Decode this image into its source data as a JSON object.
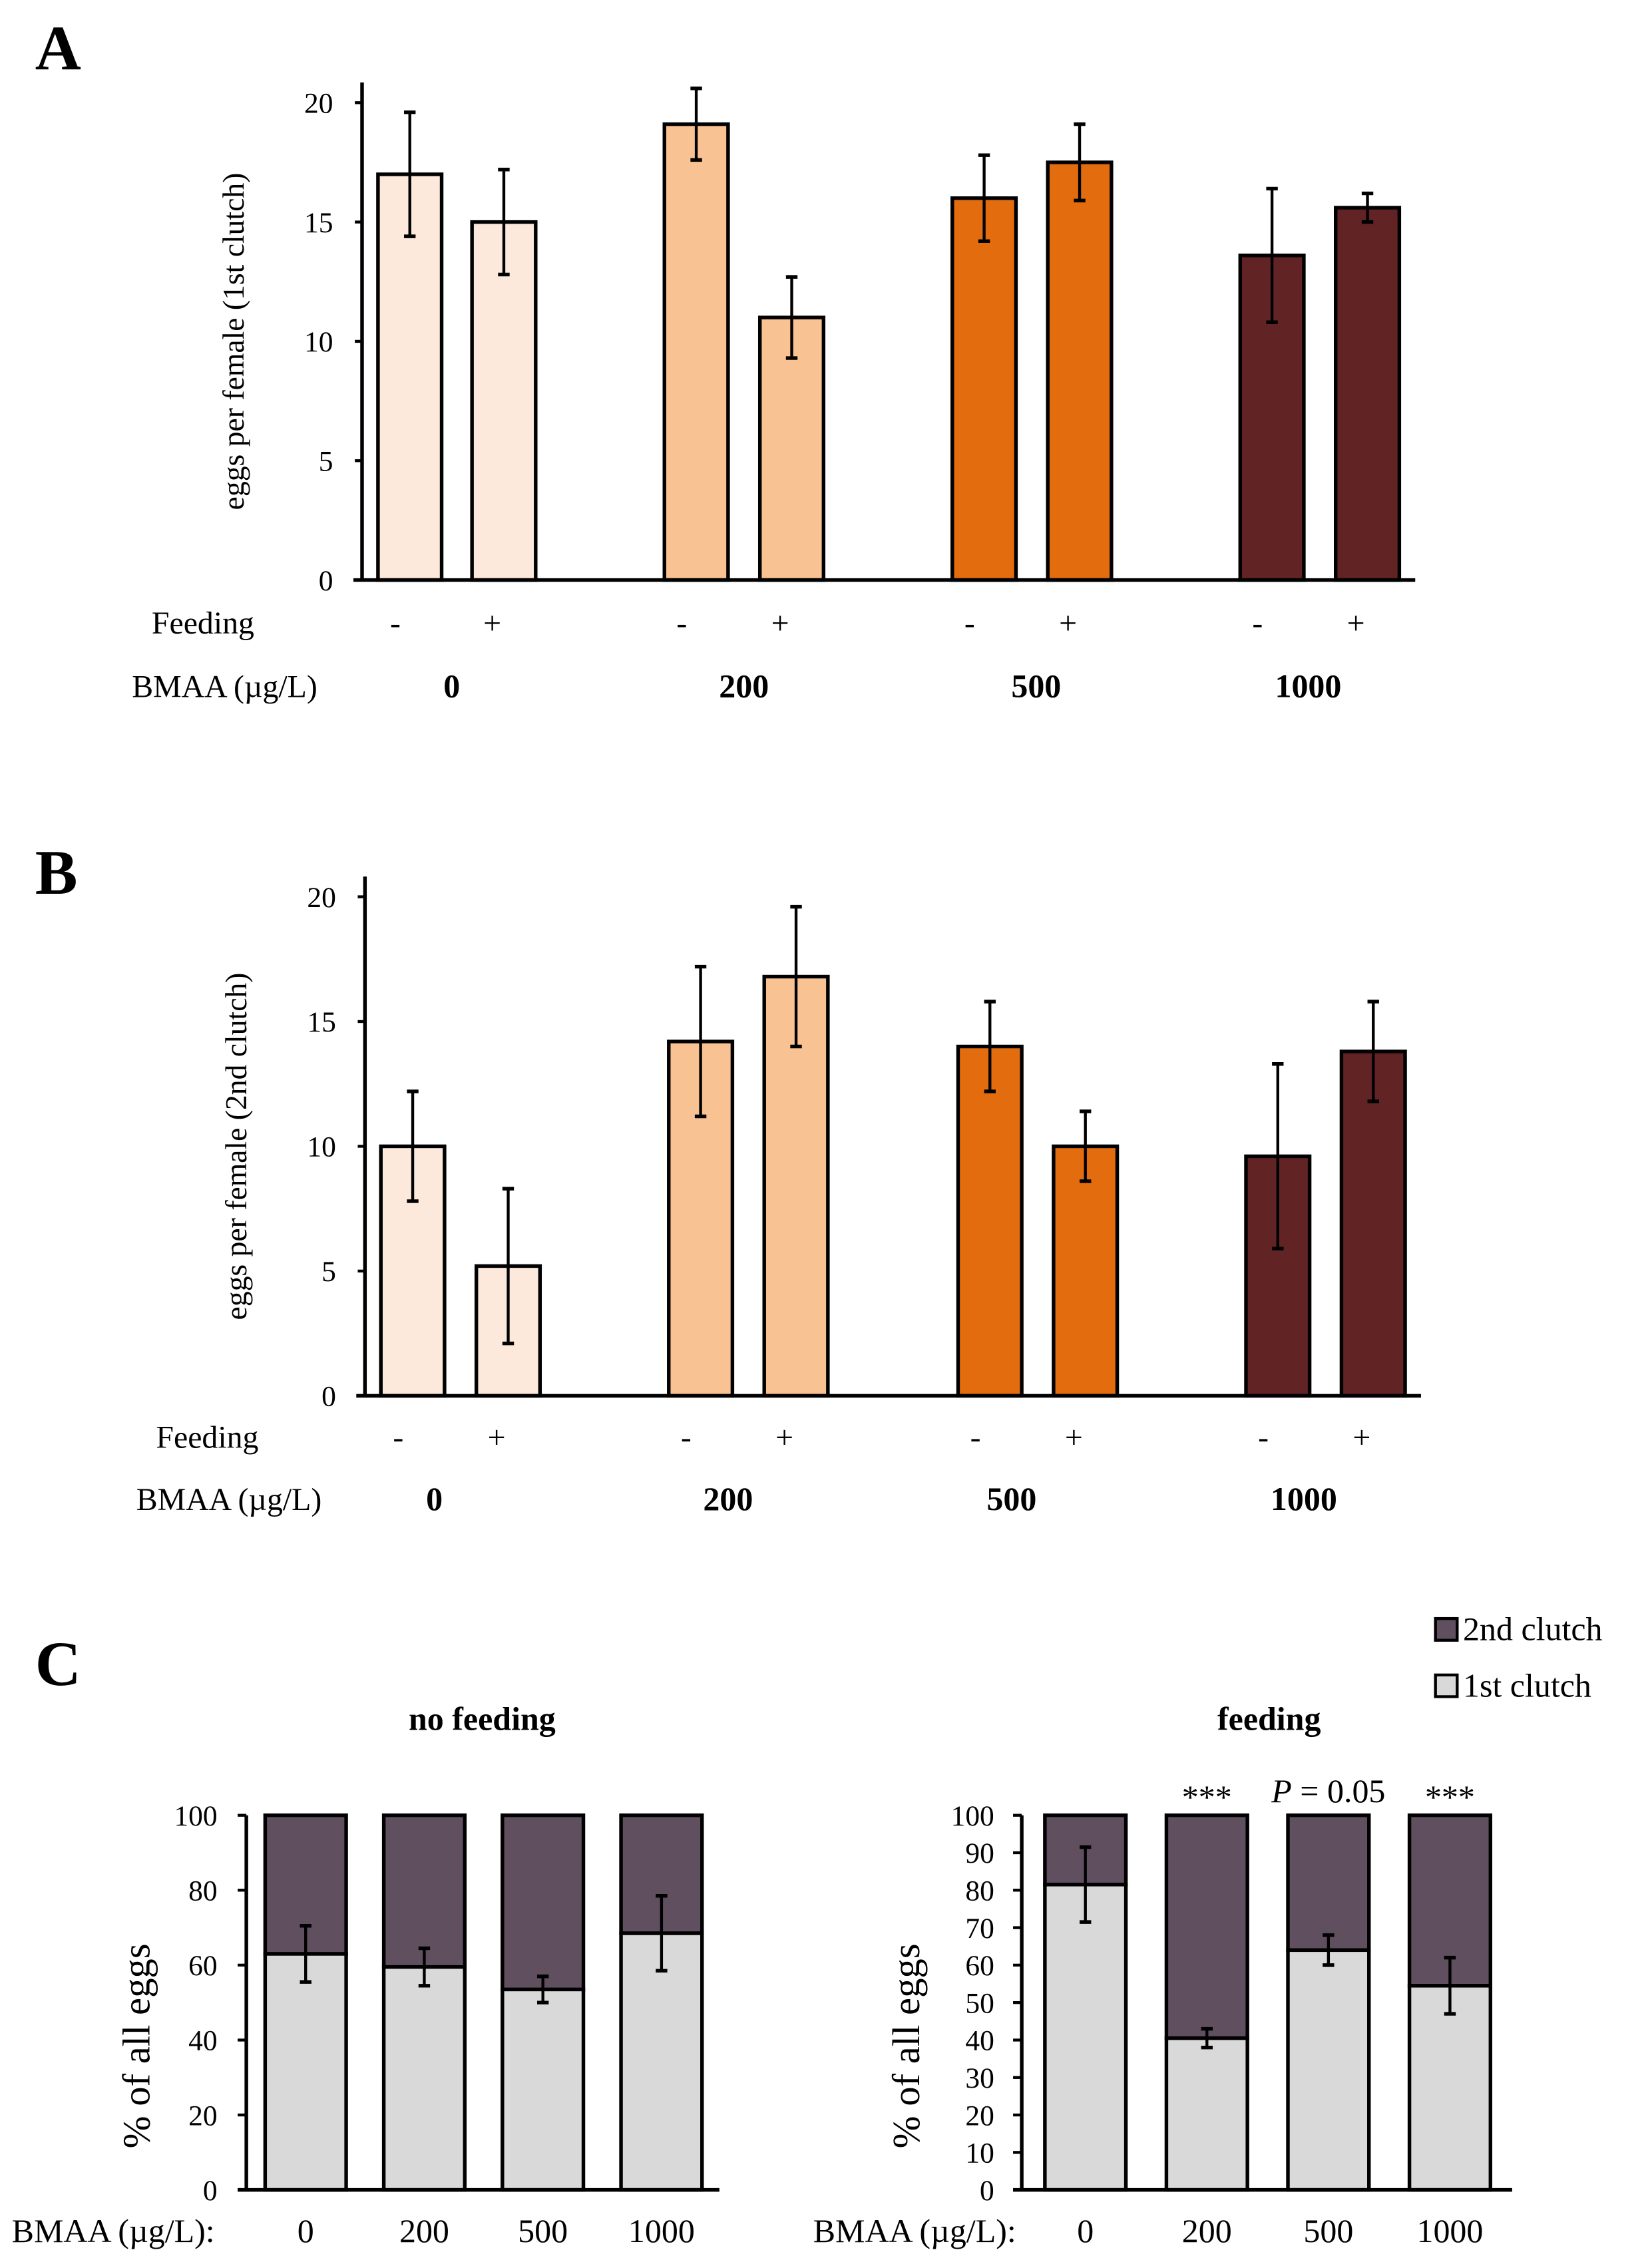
{
  "colors": {
    "c0": "#fce9db",
    "c200": "#f8c293",
    "c500": "#e36c0e",
    "c1000": "#622325",
    "first": "#d9d9d9",
    "second": "#604f5f"
  },
  "chart_data": [
    {
      "panel": "A",
      "type": "bar",
      "ylabel": "eggs per female (1st clutch)",
      "ylim": [
        0,
        20
      ],
      "yticks": [
        "0",
        "5",
        "10",
        "15",
        "20"
      ],
      "feeding_label": "Feeding",
      "bmaa_label": "BMAA  (µg/L)",
      "groups": [
        "0",
        "200",
        "500",
        "1000"
      ],
      "feeding": [
        "-",
        "+"
      ],
      "values": [
        17,
        15,
        19.1,
        11,
        16,
        17.5,
        13.6,
        15.6
      ],
      "errors": [
        2.6,
        2.2,
        1.5,
        1.7,
        1.8,
        1.6,
        2.8,
        0.6
      ]
    },
    {
      "panel": "B",
      "type": "bar",
      "ylabel": "eggs per female (2nd clutch)",
      "ylim": [
        0,
        20
      ],
      "yticks": [
        "0",
        "5",
        "10",
        "15",
        "20"
      ],
      "feeding_label": "Feeding",
      "bmaa_label": "BMAA  (µg/L)",
      "groups": [
        "0",
        "200",
        "500",
        "1000"
      ],
      "feeding": [
        "-",
        "+"
      ],
      "values": [
        10,
        5.2,
        14.2,
        16.8,
        14,
        10,
        9.6,
        13.8
      ],
      "errors": [
        2.2,
        3.1,
        3.0,
        2.8,
        1.8,
        1.4,
        3.7,
        2.0
      ]
    },
    {
      "panel": "C",
      "type": "stacked-bar",
      "legend": [
        "2nd clutch",
        "1st clutch"
      ],
      "legend_position": "top-right",
      "subplots": [
        {
          "title": "no feeding",
          "ylabel": "% of all eggs",
          "ylim": [
            0,
            100
          ],
          "yticks": [
            "0",
            "20",
            "40",
            "60",
            "80",
            "100"
          ],
          "xlabel": "BMAA  (µg/L):",
          "categories": [
            "0",
            "200",
            "500",
            "1000"
          ],
          "first_clutch": [
            63,
            59.5,
            53.5,
            68.5
          ],
          "errors": [
            7.5,
            5,
            3.5,
            10
          ],
          "annotations": [
            "",
            "",
            "",
            ""
          ]
        },
        {
          "title": "feeding",
          "ylabel": "% of all eggs",
          "ylim": [
            0,
            100
          ],
          "yticks": [
            "0",
            "10",
            "20",
            "30",
            "40",
            "50",
            "60",
            "70",
            "80",
            "90",
            "100"
          ],
          "xlabel": "BMAA  (µg/L):",
          "categories": [
            "0",
            "200",
            "500",
            "1000"
          ],
          "first_clutch": [
            81.5,
            40.5,
            64,
            54.5
          ],
          "errors": [
            10,
            2.5,
            4,
            7.5
          ],
          "annotations": [
            "",
            "***",
            "P = 0.05",
            "***"
          ]
        }
      ]
    }
  ]
}
